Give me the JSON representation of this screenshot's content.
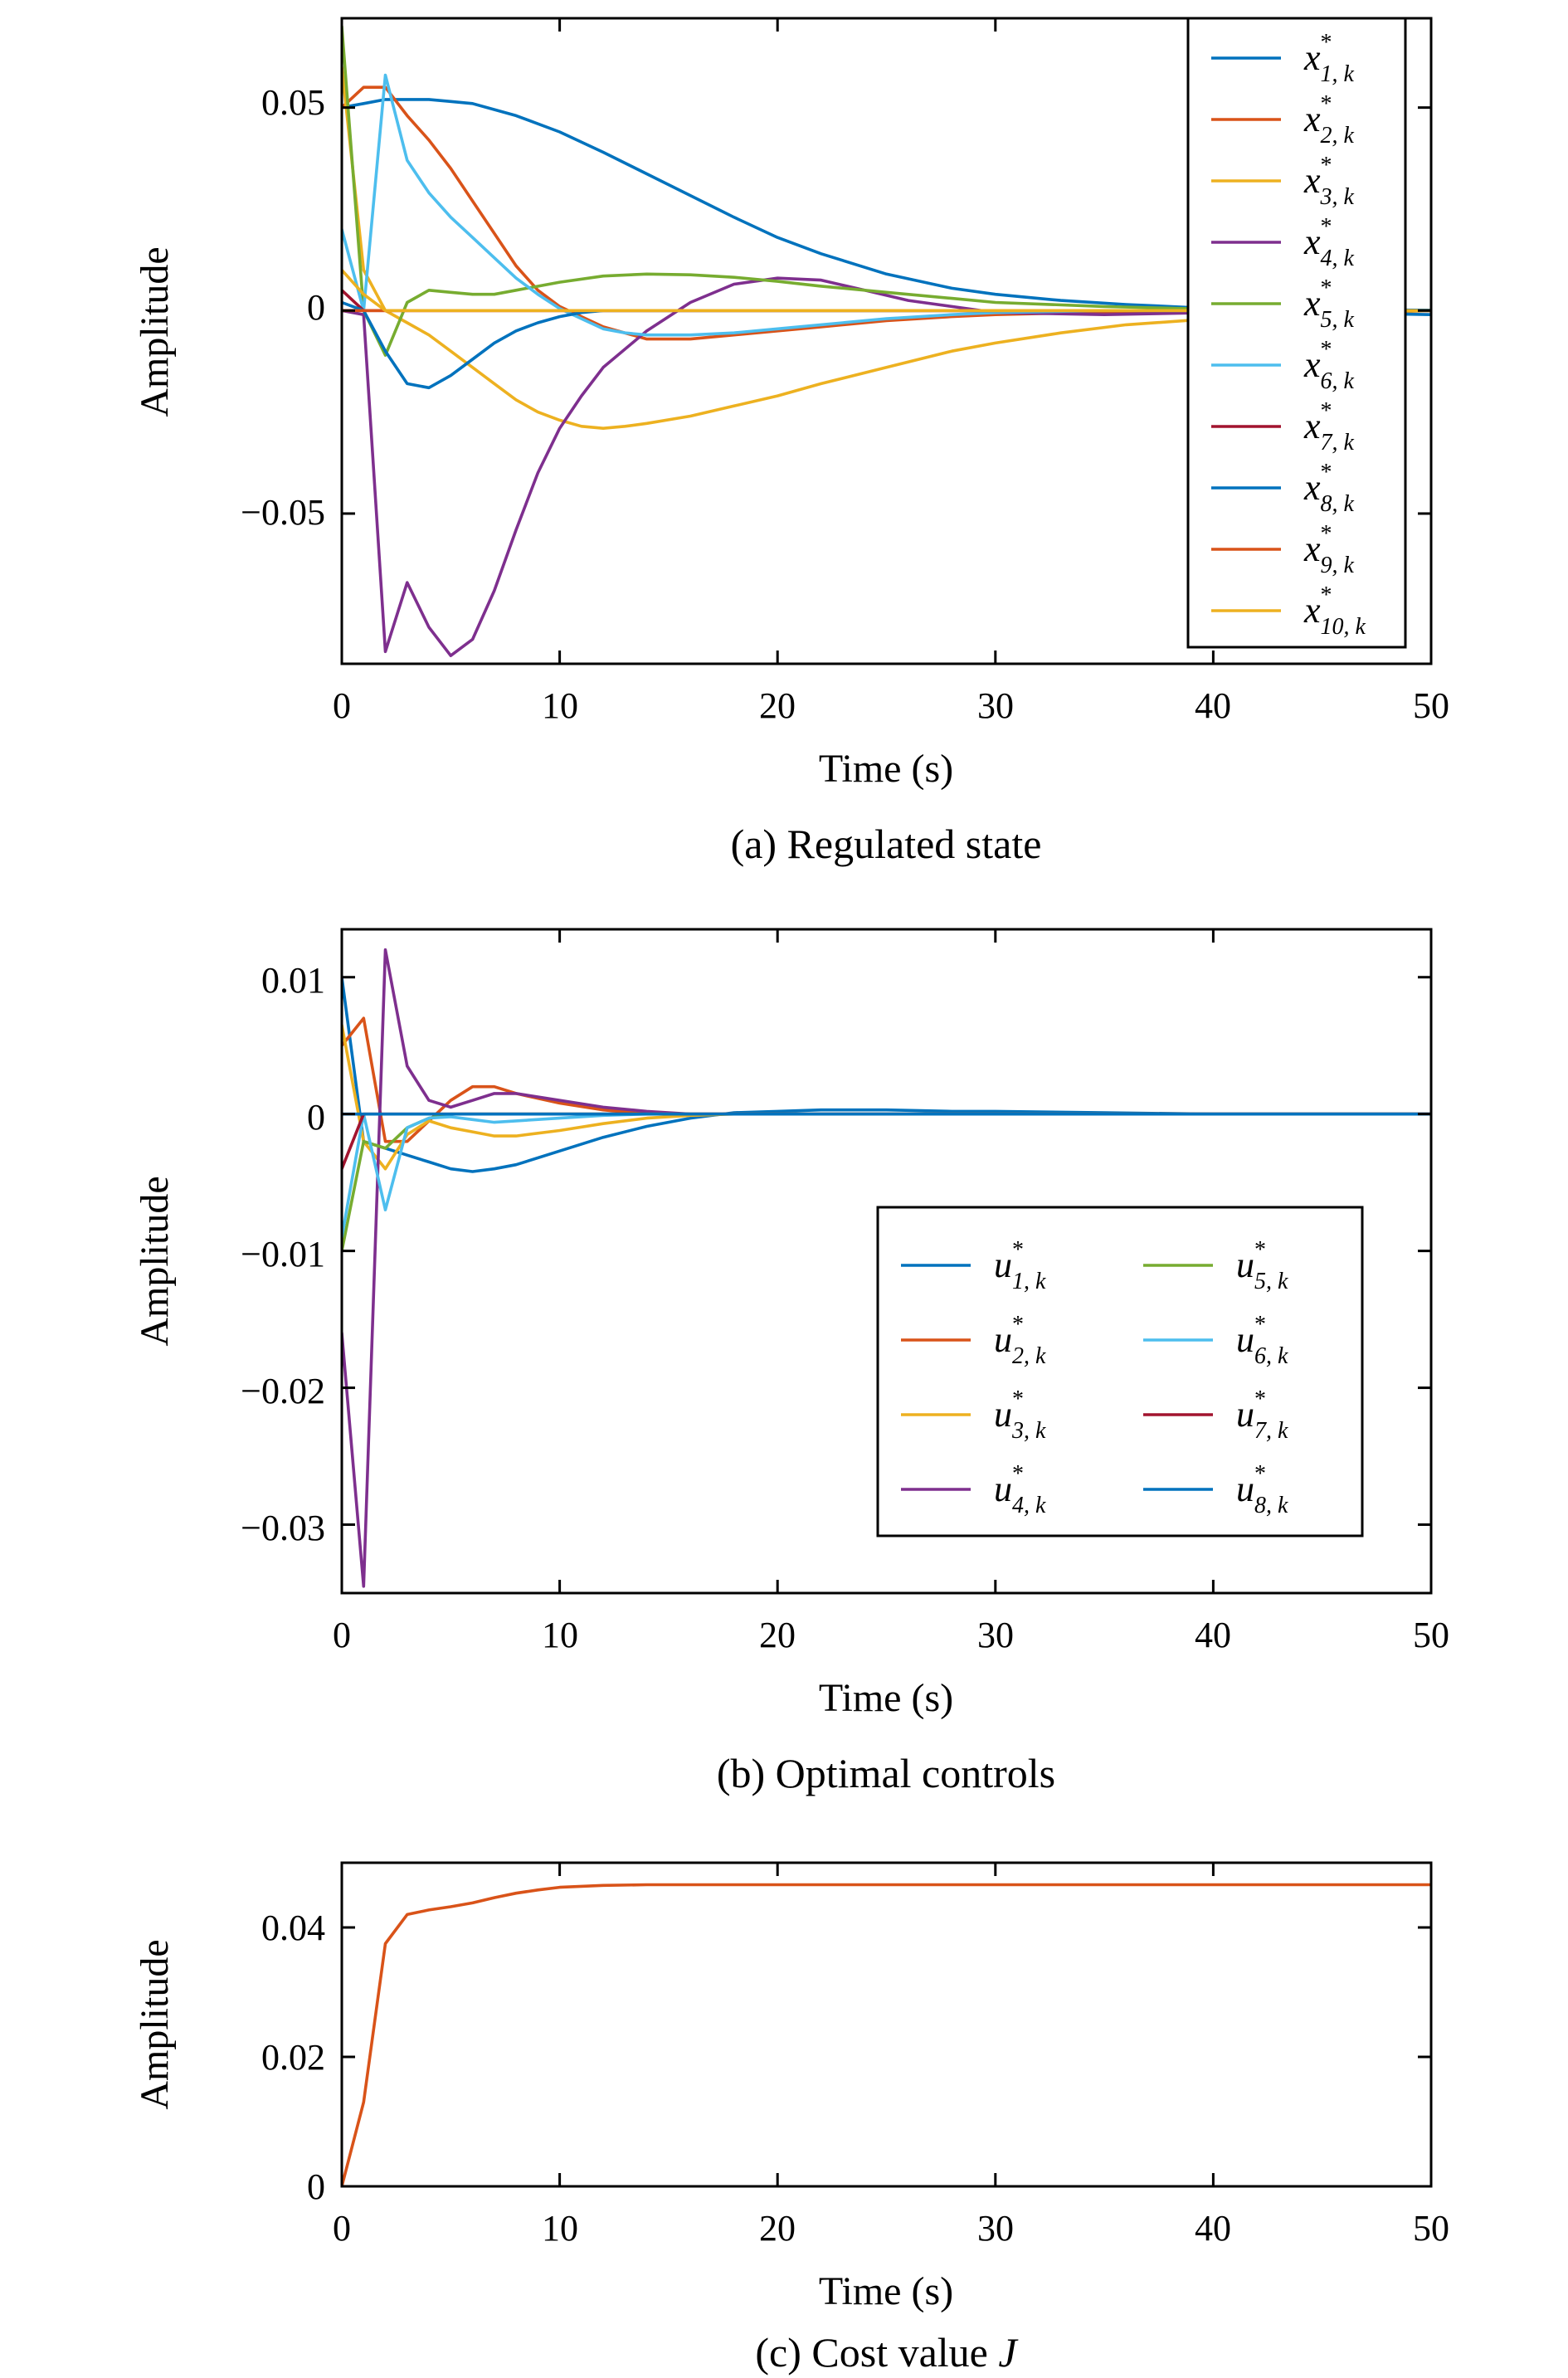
{
  "chart_data": [
    {
      "id": "a",
      "type": "line",
      "caption": "(a) Regulated state",
      "xlabel": "Time (s)",
      "ylabel": "Amplitude",
      "xlim": [
        0,
        50
      ],
      "ylim": [
        -0.087,
        0.072
      ],
      "xticks": [
        0,
        10,
        20,
        30,
        40,
        50
      ],
      "xtick_labels": [
        "0",
        "10",
        "20",
        "30",
        "40",
        "50"
      ],
      "yticks": [
        0.05,
        0,
        -0.05
      ],
      "ytick_labels": [
        "0.05",
        "0",
        "−0.05"
      ],
      "grid": false,
      "legend_placement": "top-right",
      "legend_columns": 1,
      "series": [
        {
          "name": "x*_{1,k}",
          "base": "x",
          "sub": "1, k",
          "color": "#0072BD",
          "x": [
            0,
            1,
            2,
            3,
            4,
            5,
            6,
            8,
            10,
            12,
            15,
            18,
            20,
            22,
            25,
            28,
            30,
            33,
            36,
            38,
            40,
            45,
            50
          ],
          "y": [
            0.05,
            0.051,
            0.052,
            0.052,
            0.052,
            0.0515,
            0.051,
            0.048,
            0.044,
            0.039,
            0.031,
            0.023,
            0.018,
            0.014,
            0.009,
            0.0055,
            0.004,
            0.0025,
            0.0015,
            0.001,
            0.0005,
            0.0002,
            0.0001
          ]
        },
        {
          "name": "x*_{2,k}",
          "base": "x",
          "sub": "2, k",
          "color": "#D95319",
          "x": [
            0,
            1,
            2,
            3,
            4,
            5,
            6,
            7,
            8,
            9,
            10,
            12,
            14,
            16,
            18,
            20,
            22,
            25,
            28,
            30,
            35,
            40,
            45,
            50
          ],
          "y": [
            0.05,
            0.055,
            0.055,
            0.048,
            0.042,
            0.035,
            0.027,
            0.019,
            0.011,
            0.005,
            0.001,
            -0.004,
            -0.007,
            -0.007,
            -0.006,
            -0.005,
            -0.004,
            -0.0025,
            -0.0015,
            -0.001,
            -0.0004,
            -0.0001,
            0,
            0
          ]
        },
        {
          "name": "x*_{3,k}",
          "base": "x",
          "sub": "3, k",
          "color": "#EDB120",
          "x": [
            0,
            1,
            2,
            3,
            4,
            5,
            6,
            7,
            8,
            9,
            10,
            11,
            12,
            13,
            14,
            16,
            18,
            20,
            22,
            25,
            28,
            30,
            33,
            36,
            40,
            45,
            50
          ],
          "y": [
            0.06,
            0.01,
            0,
            -0.003,
            -0.006,
            -0.01,
            -0.014,
            -0.018,
            -0.022,
            -0.025,
            -0.027,
            -0.0285,
            -0.029,
            -0.0285,
            -0.0278,
            -0.026,
            -0.0235,
            -0.021,
            -0.018,
            -0.014,
            -0.01,
            -0.008,
            -0.0055,
            -0.0035,
            -0.002,
            -0.001,
            0
          ]
        },
        {
          "name": "x*_{4,k}",
          "base": "x",
          "sub": "4, k",
          "color": "#7E2F8E",
          "x": [
            0,
            1,
            2,
            3,
            4,
            5,
            6,
            7,
            8,
            9,
            10,
            11,
            12,
            14,
            16,
            18,
            20,
            22,
            24,
            26,
            28,
            30,
            35,
            40,
            45,
            50
          ],
          "y": [
            0,
            -0.001,
            -0.084,
            -0.067,
            -0.078,
            -0.085,
            -0.081,
            -0.069,
            -0.054,
            -0.04,
            -0.029,
            -0.021,
            -0.014,
            -0.005,
            0.002,
            0.0065,
            0.008,
            0.0075,
            0.005,
            0.0025,
            0.001,
            -0.0005,
            -0.001,
            -0.0005,
            0,
            0
          ]
        },
        {
          "name": "x*_{5,k}",
          "base": "x",
          "sub": "5, k",
          "color": "#77AC30",
          "x": [
            0,
            1,
            2,
            3,
            4,
            5,
            6,
            7,
            8,
            10,
            12,
            14,
            16,
            18,
            20,
            22,
            25,
            28,
            30,
            35,
            40,
            45,
            50
          ],
          "y": [
            0.07,
            0,
            -0.011,
            0.002,
            0.005,
            0.0045,
            0.004,
            0.004,
            0.005,
            0.007,
            0.0085,
            0.009,
            0.0088,
            0.0082,
            0.0072,
            0.006,
            0.0045,
            0.003,
            0.002,
            0.001,
            0.0003,
            0,
            0
          ]
        },
        {
          "name": "x*_{6,k}",
          "base": "x",
          "sub": "6, k",
          "color": "#4DBEEE",
          "x": [
            0,
            1,
            2,
            3,
            4,
            5,
            6,
            7,
            8,
            9,
            10,
            11,
            12,
            13,
            14,
            15,
            16,
            18,
            20,
            22,
            25,
            28,
            30,
            35,
            40,
            45,
            50
          ],
          "y": [
            0.02,
            0,
            0.058,
            0.037,
            0.029,
            0.023,
            0.018,
            0.013,
            0.008,
            0.004,
            0.0005,
            -0.002,
            -0.0045,
            -0.0055,
            -0.006,
            -0.006,
            -0.006,
            -0.0055,
            -0.0045,
            -0.0035,
            -0.002,
            -0.001,
            -0.0005,
            0,
            0,
            0,
            0
          ]
        },
        {
          "name": "x*_{7,k}",
          "base": "x",
          "sub": "7, k",
          "color": "#A2142F",
          "x": [
            0,
            1,
            2,
            5,
            10,
            20,
            30,
            40,
            50
          ],
          "y": [
            0.005,
            0,
            0,
            0,
            0,
            0,
            0,
            0,
            0
          ]
        },
        {
          "name": "x*_{8,k}",
          "base": "x",
          "sub": "8, k",
          "color": "#0072BD",
          "x": [
            0,
            1,
            2,
            3,
            4,
            5,
            6,
            7,
            8,
            9,
            10,
            11,
            12,
            14,
            16,
            18,
            20,
            25,
            30,
            35,
            40,
            45,
            50
          ],
          "y": [
            0.002,
            0,
            -0.01,
            -0.018,
            -0.019,
            -0.016,
            -0.012,
            -0.008,
            -0.005,
            -0.003,
            -0.0015,
            -0.0005,
            0,
            0,
            0,
            0,
            0,
            0,
            0,
            0,
            0,
            -0.0005,
            -0.001
          ]
        },
        {
          "name": "x*_{9,k}",
          "base": "x",
          "sub": "9, k",
          "color": "#D95319",
          "x": [
            0,
            1,
            2,
            5,
            10,
            20,
            30,
            40,
            50
          ],
          "y": [
            0,
            0,
            0,
            0,
            0,
            0,
            0,
            0,
            0
          ]
        },
        {
          "name": "x*_{10,k}",
          "base": "x",
          "sub": "10, k",
          "color": "#EDB120",
          "x": [
            0,
            1,
            2,
            5,
            10,
            20,
            30,
            40,
            50
          ],
          "y": [
            0.01,
            0.004,
            0,
            0,
            0,
            0,
            0,
            0,
            0
          ]
        }
      ]
    },
    {
      "id": "b",
      "type": "line",
      "caption": "(b) Optimal controls",
      "xlabel": "Time (s)",
      "ylabel": "Amplitude",
      "xlim": [
        0,
        50
      ],
      "ylim": [
        -0.035,
        0.0135
      ],
      "xticks": [
        0,
        10,
        20,
        30,
        40,
        50
      ],
      "xtick_labels": [
        "0",
        "10",
        "20",
        "30",
        "40",
        "50"
      ],
      "yticks": [
        0.01,
        0,
        -0.01,
        -0.02,
        -0.03
      ],
      "ytick_labels": [
        "0.01",
        "0",
        "−0.01",
        "−0.02",
        "−0.03"
      ],
      "grid": false,
      "legend_placement": "lower-right",
      "legend_columns": 2,
      "series": [
        {
          "name": "u*_{1,k}",
          "base": "u",
          "sub": "1, k",
          "color": "#0072BD",
          "x": [
            0,
            1,
            2,
            3,
            4,
            5,
            6,
            7,
            8,
            10,
            12,
            14,
            16,
            18,
            20,
            22,
            25,
            28,
            30,
            35,
            40,
            45,
            50
          ],
          "y": [
            0.01,
            -0.002,
            -0.0025,
            -0.003,
            -0.0035,
            -0.004,
            -0.0042,
            -0.004,
            -0.0037,
            -0.0027,
            -0.0017,
            -0.0009,
            -0.0003,
            0.0001,
            0.0002,
            0.0003,
            0.0003,
            0.0002,
            0.0002,
            0.0001,
            0,
            0,
            0
          ]
        },
        {
          "name": "u*_{2,k}",
          "base": "u",
          "sub": "2, k",
          "color": "#D95319",
          "x": [
            0,
            1,
            2,
            3,
            4,
            5,
            6,
            7,
            8,
            10,
            12,
            14,
            16,
            18,
            20,
            25,
            30,
            35,
            40,
            45,
            50
          ],
          "y": [
            0.005,
            0.007,
            -0.002,
            -0.002,
            -0.0005,
            0.001,
            0.002,
            0.002,
            0.0015,
            0.0008,
            0.0003,
            0,
            0,
            0,
            0,
            0,
            0,
            0,
            0,
            0,
            0
          ]
        },
        {
          "name": "u*_{3,k}",
          "base": "u",
          "sub": "3, k",
          "color": "#EDB120",
          "x": [
            0,
            1,
            2,
            3,
            4,
            5,
            6,
            7,
            8,
            10,
            12,
            14,
            16,
            18,
            20,
            25,
            30,
            35,
            40,
            45,
            50
          ],
          "y": [
            0.0065,
            -0.002,
            -0.004,
            -0.0015,
            -0.0005,
            -0.001,
            -0.0013,
            -0.0016,
            -0.0016,
            -0.0012,
            -0.0007,
            -0.0003,
            -0.0001,
            0,
            0,
            0,
            0,
            0,
            0,
            0,
            0
          ]
        },
        {
          "name": "u*_{4,k}",
          "base": "u",
          "sub": "4, k",
          "color": "#7E2F8E",
          "x": [
            0,
            1,
            2,
            3,
            4,
            5,
            6,
            7,
            8,
            10,
            12,
            14,
            16,
            18,
            20,
            25,
            30,
            35,
            40,
            45,
            50
          ],
          "y": [
            -0.016,
            -0.0345,
            0.012,
            0.0035,
            0.001,
            0.0005,
            0.001,
            0.0015,
            0.0015,
            0.001,
            0.0005,
            0.0002,
            0,
            0,
            0,
            0,
            0,
            0,
            0,
            0,
            0
          ]
        },
        {
          "name": "u*_{5,k}",
          "base": "u",
          "sub": "5, k",
          "color": "#77AC30",
          "x": [
            0,
            1,
            2,
            3,
            4,
            5,
            6,
            8,
            10,
            20,
            30,
            40,
            50
          ],
          "y": [
            -0.01,
            -0.002,
            -0.0025,
            -0.001,
            -0.0003,
            0,
            0,
            0,
            0,
            0,
            0,
            0,
            0
          ]
        },
        {
          "name": "u*_{6,k}",
          "base": "u",
          "sub": "6, k",
          "color": "#4DBEEE",
          "x": [
            0,
            1,
            2,
            3,
            4,
            5,
            6,
            7,
            8,
            10,
            12,
            14,
            16,
            20,
            30,
            40,
            50
          ],
          "y": [
            -0.009,
            0,
            -0.007,
            -0.001,
            -0.0003,
            -0.0002,
            -0.0004,
            -0.0006,
            -0.0005,
            -0.0003,
            -0.0001,
            0,
            0,
            0,
            0,
            0,
            0
          ]
        },
        {
          "name": "u*_{7,k}",
          "base": "u",
          "sub": "7, k",
          "color": "#A2142F",
          "x": [
            0,
            1,
            2,
            3,
            4,
            5,
            10,
            20,
            30,
            40,
            50
          ],
          "y": [
            -0.004,
            0,
            0,
            0,
            0,
            0,
            0,
            0,
            0,
            0,
            0
          ]
        },
        {
          "name": "u*_{8,k}",
          "base": "u",
          "sub": "8, k",
          "color": "#0072BD",
          "x": [
            0,
            1,
            2,
            3,
            5,
            10,
            20,
            30,
            40,
            50
          ],
          "y": [
            0,
            0,
            0,
            0,
            0,
            0,
            0,
            0,
            0,
            0
          ]
        }
      ]
    },
    {
      "id": "c",
      "type": "line",
      "caption_text": "(c) Cost value ",
      "caption_var": "J",
      "xlabel": "Time (s)",
      "ylabel": "Amplitude",
      "xlim": [
        0,
        50
      ],
      "ylim": [
        0,
        0.05
      ],
      "xticks": [
        0,
        10,
        20,
        30,
        40,
        50
      ],
      "xtick_labels": [
        "0",
        "10",
        "20",
        "30",
        "40",
        "50"
      ],
      "yticks": [
        0,
        0.02,
        0.04
      ],
      "ytick_labels": [
        "0",
        "0.02",
        "0.04"
      ],
      "grid": false,
      "series": [
        {
          "name": "",
          "color": "#D95319",
          "x": [
            0,
            1,
            2,
            3,
            4,
            5,
            6,
            7,
            8,
            9,
            10,
            12,
            14,
            16,
            20,
            30,
            40,
            50
          ],
          "y": [
            0,
            0.013,
            0.0375,
            0.042,
            0.0427,
            0.0432,
            0.0438,
            0.0446,
            0.0453,
            0.0458,
            0.0462,
            0.0465,
            0.0466,
            0.0466,
            0.0466,
            0.0466,
            0.0466,
            0.0466
          ]
        }
      ]
    }
  ]
}
